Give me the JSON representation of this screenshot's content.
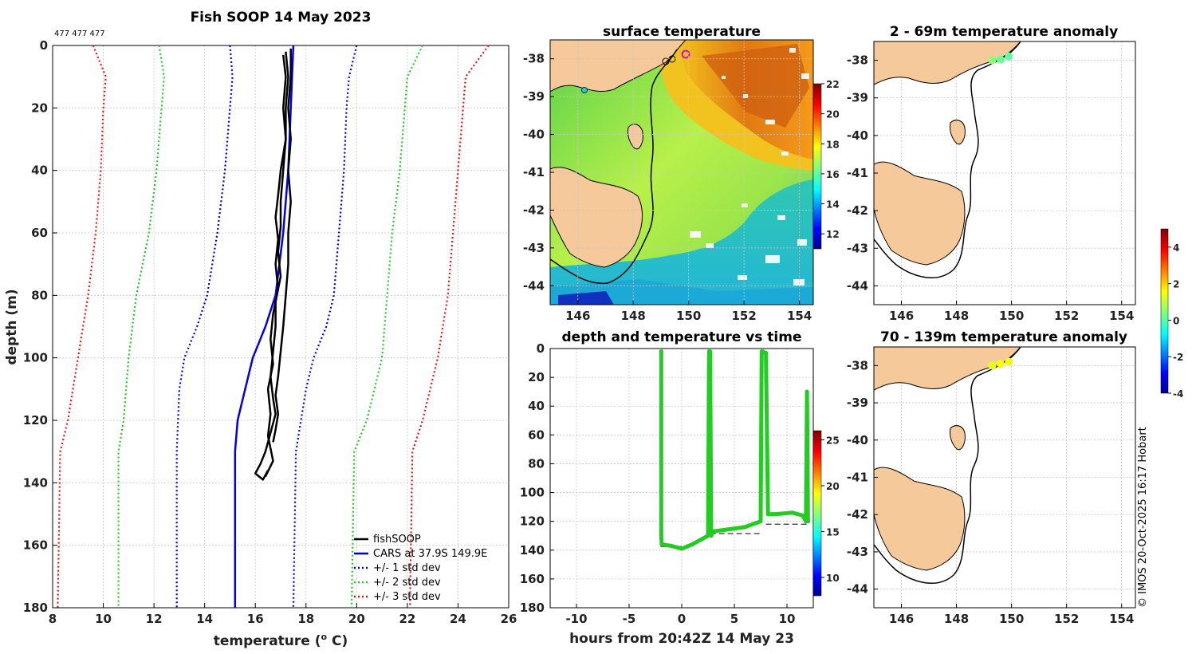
{
  "figure": {
    "credit": "© IMOS 20-Oct-2025 16:17 Hobart",
    "profile_ids": "477 477 477"
  },
  "chart_data": [
    {
      "id": "profile",
      "type": "line",
      "title": "Fish SOOP 14 May 2023",
      "xlabel": "temperature (",
      "xlabel_sup": "o",
      "xlabel_end": " C)",
      "ylabel": "depth (m)",
      "xlim": [
        8,
        26
      ],
      "ylim": [
        0,
        180
      ],
      "xticks": [
        "8",
        "10",
        "12",
        "14",
        "16",
        "18",
        "20",
        "22",
        "24",
        "26"
      ],
      "yticks": [
        "0",
        "20",
        "40",
        "60",
        "80",
        "100",
        "120",
        "140",
        "160",
        "180"
      ],
      "legend": [
        "fishSOOP",
        "CARS at 37.9S 149.9E",
        "+/- 1 std dev",
        "+/- 2 std dev",
        "+/- 3 std dev"
      ],
      "series": [
        {
          "name": "fishSOOP",
          "color": "#000000",
          "dash": "",
          "casts": [
            {
              "t": [
                17.1,
                17.2,
                17.1,
                17.2,
                17.0,
                16.9,
                16.8,
                16.9,
                16.8,
                16.9,
                16.7,
                16.6,
                16.7,
                16.5,
                16.6,
                16.5,
                16.7,
                16.4
              ],
              "d": [
                3,
                10,
                20,
                30,
                40,
                48,
                55,
                62,
                70,
                78,
                86,
                94,
                102,
                110,
                118,
                125,
                133,
                138
              ]
            },
            {
              "t": [
                17.2,
                17.3,
                17.2,
                17.2,
                17.1,
                17.0,
                17.0,
                16.9,
                17.0,
                16.8,
                16.8,
                16.7,
                16.6,
                16.7,
                16.8,
                16.6,
                16.4,
                16.2,
                16.0,
                16.3,
                16.5
              ],
              "d": [
                2,
                10,
                20,
                30,
                40,
                50,
                58,
                66,
                74,
                82,
                90,
                98,
                106,
                113,
                118,
                124,
                130,
                134,
                137,
                139,
                136
              ]
            },
            {
              "t": [
                17.4,
                17.4,
                17.3,
                17.4,
                17.3,
                17.4,
                17.3,
                17.3,
                17.2,
                17.1,
                17.0,
                16.9,
                16.8,
                16.9,
                16.8,
                16.7
              ],
              "d": [
                1,
                10,
                20,
                30,
                40,
                50,
                60,
                70,
                80,
                90,
                98,
                106,
                112,
                118,
                123,
                127
              ]
            }
          ]
        },
        {
          "name": "CARS at 37.9S 149.9E",
          "color": "#0000e6",
          "dash": "",
          "t": [
            17.5,
            17.45,
            17.4,
            17.3,
            17.1,
            16.8,
            16.4,
            15.9,
            15.6,
            15.3,
            15.2,
            15.2
          ],
          "d": [
            0,
            10,
            20,
            40,
            60,
            80,
            90,
            100,
            110,
            120,
            130,
            180
          ]
        },
        {
          "name": "+/- 1 std dev",
          "color": "#0000e6",
          "dash": "2 3",
          "pairs": [
            {
              "t": [
                15.0,
                15.1,
                15.0,
                14.8,
                14.5,
                14.1,
                13.7,
                13.2,
                13.0,
                12.9,
                12.9
              ],
              "d": [
                0,
                10,
                20,
                40,
                60,
                80,
                90,
                100,
                110,
                130,
                180
              ]
            },
            {
              "t": [
                20.0,
                19.7,
                19.6,
                19.5,
                19.3,
                19.1,
                18.8,
                18.3,
                18.0,
                17.6,
                17.5
              ],
              "d": [
                0,
                10,
                20,
                40,
                60,
                80,
                90,
                100,
                110,
                130,
                180
              ]
            }
          ]
        },
        {
          "name": "+/- 2 std dev",
          "color": "#22cc22",
          "dash": "2 3",
          "pairs": [
            {
              "t": [
                12.2,
                12.4,
                12.3,
                12.1,
                11.8,
                11.3,
                11.0,
                10.8,
                10.6,
                10.6
              ],
              "d": [
                0,
                10,
                20,
                40,
                60,
                80,
                100,
                120,
                130,
                180
              ]
            },
            {
              "t": [
                22.6,
                22.0,
                21.9,
                21.7,
                21.4,
                21.2,
                21.0,
                20.4,
                19.9,
                19.8
              ],
              "d": [
                0,
                10,
                20,
                40,
                60,
                80,
                100,
                120,
                130,
                180
              ]
            }
          ]
        },
        {
          "name": "+/- 3 std dev",
          "color": "#ee1111",
          "dash": "2 3",
          "pairs": [
            {
              "t": [
                9.6,
                10.1,
                10.0,
                9.9,
                9.7,
                9.4,
                9.0,
                8.6,
                8.3,
                8.2
              ],
              "d": [
                0,
                10,
                20,
                40,
                60,
                80,
                100,
                120,
                130,
                180
              ]
            },
            {
              "t": [
                25.2,
                24.3,
                24.2,
                24.0,
                23.8,
                23.6,
                23.2,
                22.6,
                22.2,
                22.1
              ],
              "d": [
                0,
                10,
                20,
                40,
                60,
                80,
                100,
                120,
                130,
                180
              ]
            }
          ]
        }
      ]
    },
    {
      "id": "sst",
      "type": "heatmap",
      "title": "surface temperature",
      "xlim": [
        145,
        154.5
      ],
      "ylim": [
        -44.5,
        -37.5
      ],
      "xticks": [
        "146",
        "148",
        "150",
        "152",
        "154"
      ],
      "yticks": [
        "-38",
        "-39",
        "-40",
        "-41",
        "-42",
        "-43",
        "-44"
      ],
      "colorbar": {
        "range": [
          11,
          22
        ],
        "ticks": [
          "12",
          "14",
          "16",
          "18",
          "20",
          "22"
        ]
      }
    },
    {
      "id": "depth_time",
      "type": "scatter",
      "title": "depth and temperature vs time",
      "xlabel": "hours from 20:42Z 14 May 23",
      "xlim": [
        -12.5,
        12.5
      ],
      "ylim": [
        0,
        180
      ],
      "xticks": [
        "-10",
        "-5",
        "0",
        "5",
        "10"
      ],
      "yticks": [
        "0",
        "20",
        "40",
        "60",
        "80",
        "100",
        "120",
        "140",
        "160",
        "180"
      ],
      "colorbar": {
        "range": [
          8,
          26
        ],
        "ticks": [
          "10",
          "15",
          "20",
          "25"
        ]
      },
      "points": {
        "h": [
          -1.95,
          -1.95,
          -1.9,
          -1.0,
          0.0,
          1.0,
          2.0,
          2.5,
          2.6,
          2.7,
          2.8,
          2.9,
          4.0,
          6.0,
          7.5,
          7.6,
          7.7,
          7.9,
          8.0,
          8.2,
          9.0,
          10.5,
          11.5,
          11.8,
          11.9,
          12.0
        ],
        "d": [
          2,
          130,
          136,
          137,
          139,
          136,
          132,
          130,
          2,
          2,
          130,
          127,
          126,
          124,
          120,
          2,
          2,
          3,
          3,
          115,
          115,
          114,
          116,
          120,
          30,
          120
        ]
      },
      "bottom_lines": [
        {
          "h": [
            -2,
            0
          ],
          "d": [
            137.5,
            137.5
          ]
        },
        {
          "h": [
            2.7,
            7.7
          ],
          "d": [
            128.5,
            128.5
          ]
        },
        {
          "h": [
            8.0,
            12.0
          ],
          "d": [
            122,
            122
          ]
        }
      ]
    },
    {
      "id": "anom_shallow",
      "type": "scatter",
      "title": "2 - 69m temperature anomaly",
      "xlim": [
        145,
        154.5
      ],
      "ylim": [
        -44.5,
        -37.5
      ],
      "xticks": [
        "146",
        "148",
        "150",
        "152",
        "154"
      ],
      "yticks": [
        "-38",
        "-39",
        "-40",
        "-41",
        "-42",
        "-43",
        "-44"
      ],
      "points": {
        "lon": [
          149.3,
          149.6,
          149.9
        ],
        "lat": [
          -38.0,
          -37.98,
          -37.9
        ],
        "anom": [
          0.6,
          0.3,
          0.2
        ]
      }
    },
    {
      "id": "anom_deep",
      "type": "scatter",
      "title": "70 - 139m temperature anomaly",
      "xlim": [
        145,
        154.5
      ],
      "ylim": [
        -44.5,
        -37.5
      ],
      "xticks": [
        "146",
        "148",
        "150",
        "152",
        "154"
      ],
      "yticks": [
        "-38",
        "-39",
        "-40",
        "-41",
        "-42",
        "-43",
        "-44"
      ],
      "points": {
        "lon": [
          149.3,
          149.6,
          149.9
        ],
        "lat": [
          -38.0,
          -37.95,
          -37.9
        ],
        "anom": [
          1.4,
          1.6,
          1.5
        ]
      }
    },
    {
      "id": "anom_colorbar",
      "type": "heatmap",
      "range": [
        -4,
        5
      ],
      "ticks": [
        "4",
        "2",
        "0",
        "-2",
        "-4"
      ]
    }
  ]
}
